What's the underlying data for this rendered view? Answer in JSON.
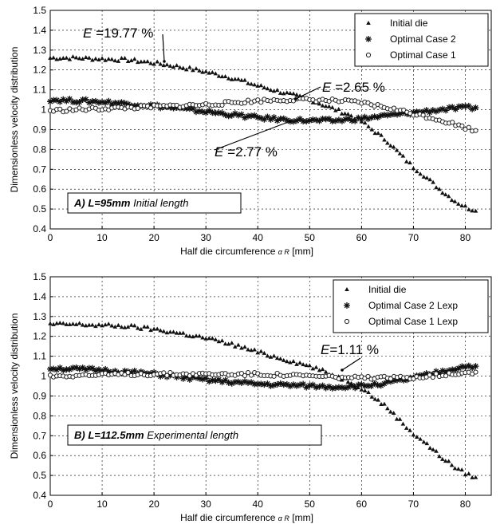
{
  "chart_data": [
    {
      "type": "scatter",
      "panel": "A",
      "xlabel": "Half die circumference",
      "xlabel_symbol": "α R",
      "xlabel_unit": "[mm]",
      "ylabel": "Dimensionless velocity distribution",
      "xlim": [
        0,
        85
      ],
      "ylim": [
        0.4,
        1.5
      ],
      "xticks": [
        "0",
        "10",
        "20",
        "30",
        "40",
        "50",
        "60",
        "70",
        "80"
      ],
      "yticks": [
        "0.4",
        "0.5",
        "0.6",
        "0.7",
        "0.8",
        "0.9",
        "1",
        "1.1",
        "1.2",
        "1.3",
        "1.4",
        "1.5"
      ],
      "grid": true,
      "legend_position": "top-right",
      "series": [
        {
          "name": "Initial die",
          "marker": "triangle",
          "x": [
            0,
            5,
            10,
            15,
            20,
            25,
            30,
            35,
            40,
            45,
            50,
            55,
            58,
            60,
            62,
            65,
            68,
            70,
            72,
            75,
            78,
            80,
            82
          ],
          "y": [
            1.26,
            1.26,
            1.255,
            1.25,
            1.235,
            1.215,
            1.19,
            1.16,
            1.12,
            1.085,
            1.05,
            1.0,
            0.97,
            0.94,
            0.9,
            0.84,
            0.76,
            0.71,
            0.67,
            0.6,
            0.54,
            0.51,
            0.49
          ]
        },
        {
          "name": "Optimal Case 2",
          "marker": "star",
          "x": [
            0,
            5,
            10,
            15,
            20,
            25,
            30,
            35,
            40,
            45,
            50,
            55,
            60,
            65,
            70,
            75,
            80,
            82
          ],
          "y": [
            1.05,
            1.045,
            1.04,
            1.03,
            1.02,
            1.005,
            0.99,
            0.975,
            0.96,
            0.95,
            0.945,
            0.945,
            0.955,
            0.97,
            0.985,
            1.0,
            1.01,
            1.01
          ]
        },
        {
          "name": "Optimal Case 1",
          "marker": "circle",
          "x": [
            0,
            5,
            10,
            15,
            20,
            25,
            30,
            35,
            40,
            45,
            50,
            55,
            60,
            65,
            70,
            75,
            80,
            82
          ],
          "y": [
            0.995,
            1.0,
            1.005,
            1.01,
            1.015,
            1.02,
            1.025,
            1.035,
            1.045,
            1.05,
            1.05,
            1.045,
            1.035,
            1.01,
            0.98,
            0.95,
            0.91,
            0.895
          ]
        }
      ],
      "annotations": [
        {
          "text_e": "E",
          "text_rest": " =19.77 %",
          "at": [
            21,
            1.24
          ]
        },
        {
          "text_e": "E",
          "text_rest": " =2.65 %",
          "at": [
            56,
            1.04
          ]
        },
        {
          "text_e": "E",
          "text_rest": " =2.77 %",
          "at": [
            44,
            0.96
          ]
        }
      ],
      "label_box": {
        "prefix": "A)",
        "length": "L=95mm",
        "suffix": "Initial length"
      }
    },
    {
      "type": "scatter",
      "panel": "B",
      "xlabel": "Half die circumference",
      "xlabel_symbol": "α R",
      "xlabel_unit": "[mm]",
      "ylabel": "Dimensionless velocity distribution",
      "xlim": [
        0,
        85
      ],
      "ylim": [
        0.4,
        1.5
      ],
      "xticks": [
        "0",
        "10",
        "20",
        "30",
        "40",
        "50",
        "60",
        "70",
        "80"
      ],
      "yticks": [
        "0.4",
        "0.5",
        "0.6",
        "0.7",
        "0.8",
        "0.9",
        "1",
        "1.1",
        "1.2",
        "1.3",
        "1.4",
        "1.5"
      ],
      "grid": true,
      "legend_position": "top-right",
      "series": [
        {
          "name": "Initial die",
          "marker": "triangle",
          "x": [
            0,
            5,
            10,
            15,
            20,
            25,
            30,
            35,
            40,
            45,
            50,
            55,
            58,
            60,
            62,
            65,
            68,
            70,
            72,
            75,
            78,
            80,
            82
          ],
          "y": [
            1.26,
            1.26,
            1.255,
            1.25,
            1.235,
            1.215,
            1.19,
            1.16,
            1.12,
            1.085,
            1.05,
            1.0,
            0.97,
            0.94,
            0.9,
            0.84,
            0.76,
            0.71,
            0.67,
            0.6,
            0.54,
            0.51,
            0.49
          ]
        },
        {
          "name": "Optimal Case 2 Lexp",
          "marker": "star",
          "x": [
            0,
            5,
            10,
            15,
            20,
            25,
            30,
            35,
            40,
            45,
            50,
            55,
            60,
            65,
            70,
            75,
            80,
            82
          ],
          "y": [
            1.04,
            1.035,
            1.03,
            1.02,
            1.01,
            0.995,
            0.98,
            0.97,
            0.96,
            0.955,
            0.95,
            0.945,
            0.95,
            0.965,
            0.99,
            1.02,
            1.05,
            1.05
          ]
        },
        {
          "name": "Optimal Case 1 Lexp",
          "marker": "circle",
          "x": [
            0,
            5,
            10,
            15,
            20,
            25,
            30,
            35,
            40,
            45,
            50,
            55,
            60,
            65,
            70,
            75,
            80,
            82
          ],
          "y": [
            1.0,
            1.005,
            1.005,
            1.01,
            1.01,
            1.01,
            1.01,
            1.01,
            1.01,
            1.005,
            1.0,
            0.995,
            0.99,
            0.99,
            0.995,
            1.005,
            1.02,
            1.02
          ]
        }
      ],
      "annotations": [
        {
          "text_e": "E",
          "text_rest": "=1.11 %",
          "at": [
            56,
            1.0
          ]
        }
      ],
      "label_box": {
        "prefix": "B)",
        "length": "L=112.5mm",
        "suffix": "Experimental length"
      }
    }
  ]
}
